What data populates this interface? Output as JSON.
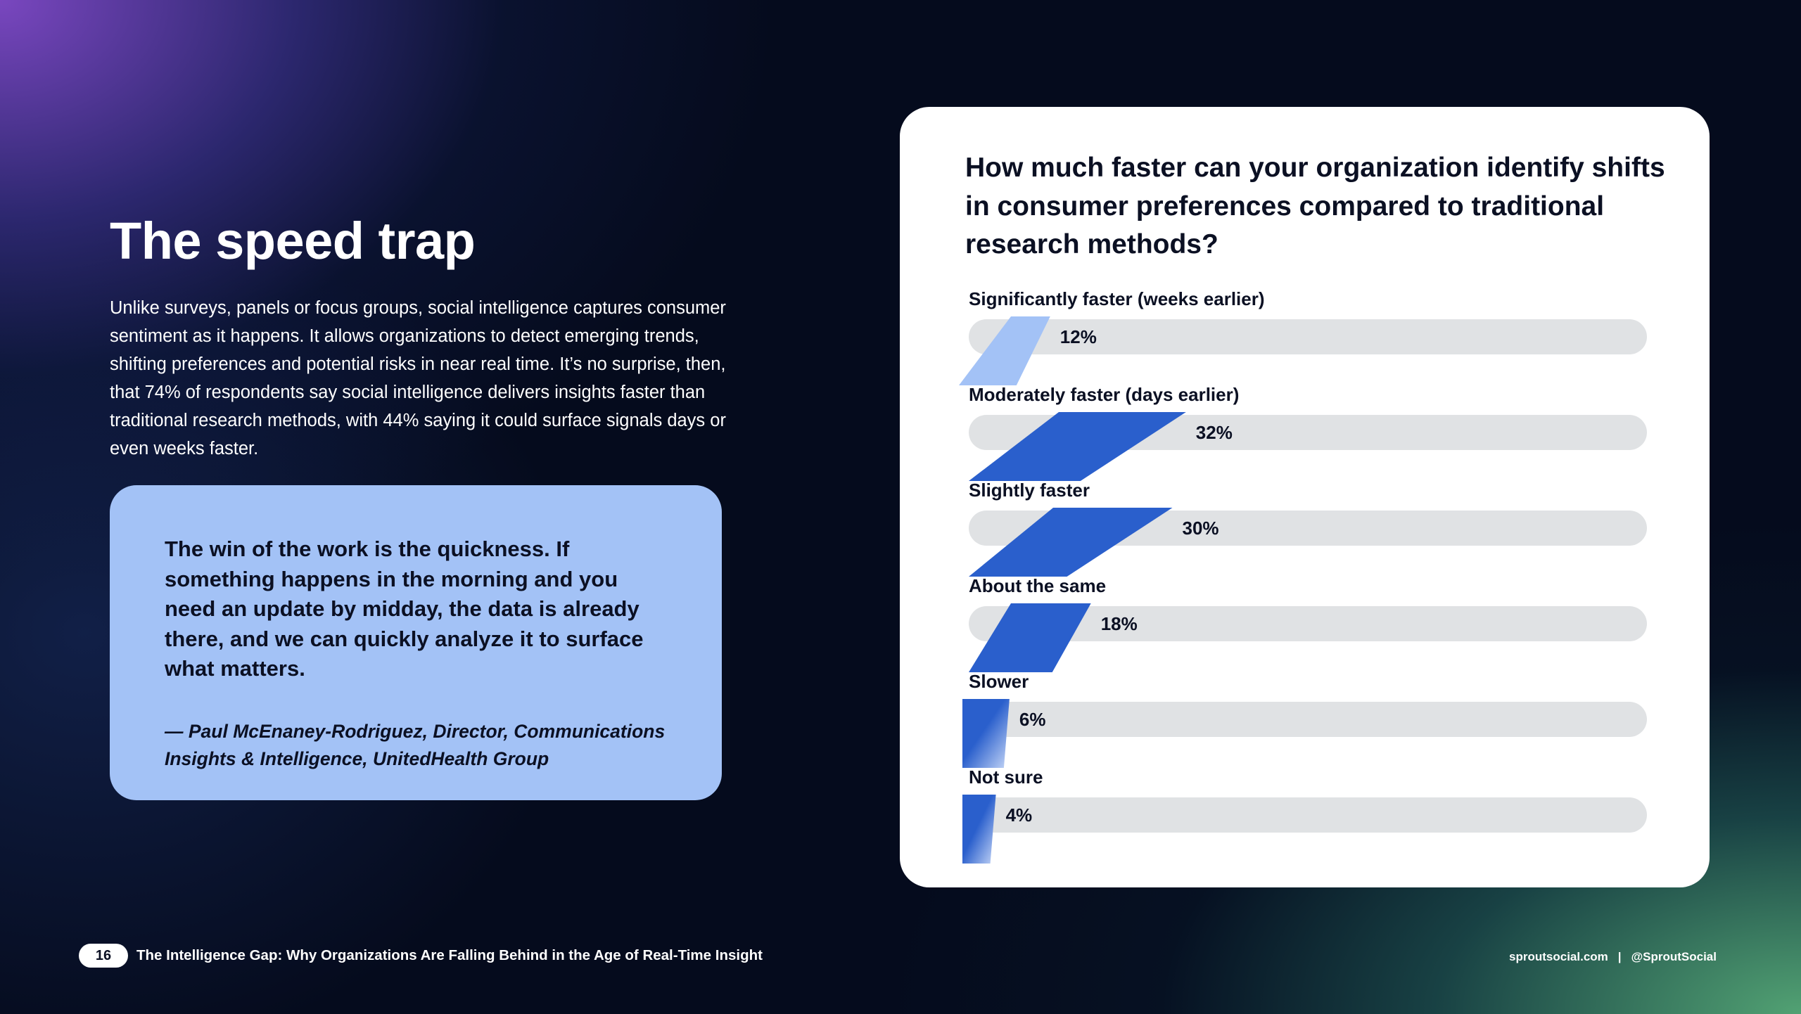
{
  "page": {
    "headline": "The speed trap",
    "body": "Unlike surveys, panels or focus groups, social intelligence captures consumer sentiment as it happens. It allows organizations to detect emerging trends, shifting preferences and potential risks in near real time. It’s no surprise, then, that 74% of respondents say social intelligence delivers insights faster than traditional research methods, with 44% saying it could surface signals days or even weeks faster."
  },
  "quote": {
    "text": "The win of the work is the quickness. If something happens in the morning and you need an update by midday, the data is already there, and we can quickly analyze it to surface what matters.",
    "author": "— Paul McEnaney-Rodriguez, Director, Communications Insights & Intelligence, UnitedHealth Group"
  },
  "chart_data": {
    "type": "bar",
    "orientation": "horizontal",
    "title": "How much faster can your organization identify shifts in consumer preferences compared to traditional research methods?",
    "categories": [
      "Significantly faster (weeks earlier)",
      "Moderately faster (days earlier)",
      "Slightly faster",
      "About the same",
      "Slower",
      "Not sure"
    ],
    "values": [
      12,
      32,
      30,
      18,
      6,
      4
    ],
    "value_labels": [
      "12%",
      "32%",
      "30%",
      "18%",
      "6%",
      "4%"
    ],
    "unit": "%",
    "xlim": [
      0,
      100
    ],
    "grid": false,
    "colors": {
      "bar_highlight": "#a3c2f6",
      "bar": "#2a5fcc",
      "track": "#e0e2e4"
    }
  },
  "footer": {
    "page_number": "16",
    "report_title": "The Intelligence Gap: Why Organizations Are Falling Behind in the Age of Real-Time Insight",
    "website": "sproutsocial.com",
    "separator": "|",
    "handle": "@SproutSocial"
  }
}
